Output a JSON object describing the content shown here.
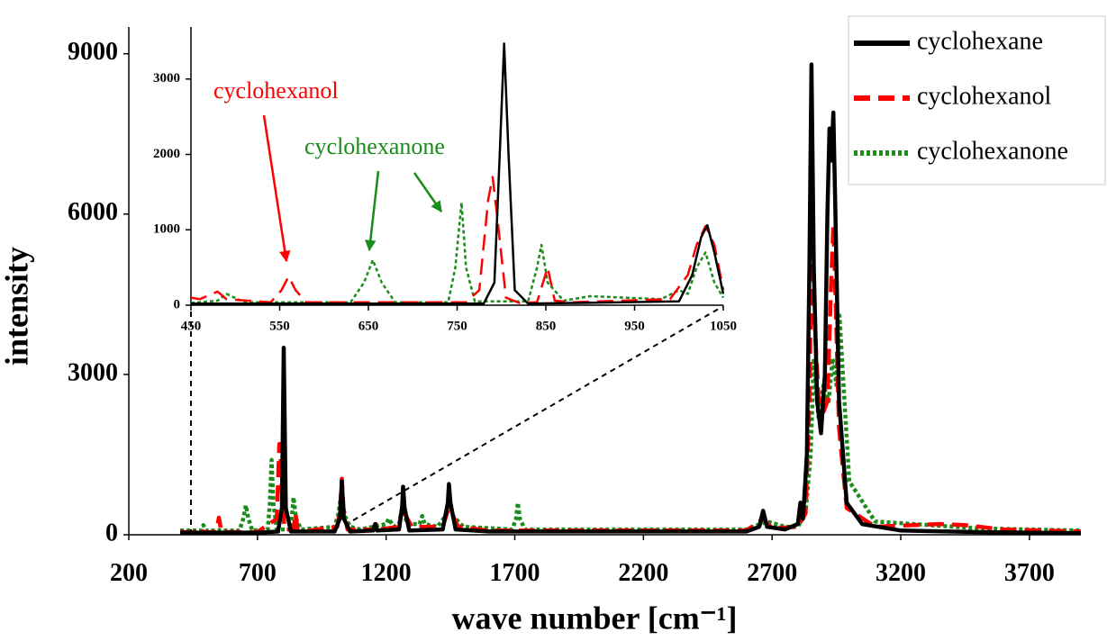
{
  "chart_data": [
    {
      "type": "line",
      "xlabel": "wave number [cm⁻¹]",
      "ylabel": "intensity",
      "xlim": [
        200,
        3900
      ],
      "ylim": [
        0,
        9500
      ],
      "xticks": [
        200,
        700,
        1200,
        1700,
        2200,
        2700,
        3200,
        3700
      ],
      "yticks": [
        0,
        3000,
        6000,
        9000
      ],
      "legend": "upper right",
      "series": [
        {
          "name": "cyclohexane",
          "color": "#000000",
          "dash": "solid",
          "x": [
            400,
            700,
            780,
            795,
            802,
            810,
            830,
            1000,
            1020,
            1028,
            1036,
            1060,
            1150,
            1157,
            1165,
            1250,
            1262,
            1266,
            1272,
            1290,
            1420,
            1440,
            1444,
            1450,
            1470,
            1600,
            2600,
            2650,
            2665,
            2680,
            2750,
            2800,
            2810,
            2820,
            2835,
            2845,
            2853,
            2862,
            2875,
            2890,
            2905,
            2915,
            2923,
            2930,
            2938,
            2946,
            2960,
            2990,
            3050,
            3200,
            3500,
            3900
          ],
          "values": [
            40,
            40,
            60,
            500,
            3500,
            500,
            60,
            60,
            300,
            1000,
            300,
            60,
            80,
            200,
            80,
            100,
            500,
            900,
            500,
            80,
            100,
            600,
            950,
            600,
            100,
            60,
            60,
            150,
            450,
            150,
            100,
            200,
            600,
            300,
            1500,
            5000,
            8800,
            5000,
            2500,
            1900,
            3000,
            6000,
            7600,
            7000,
            7900,
            6000,
            2500,
            600,
            200,
            80,
            50,
            30
          ]
        },
        {
          "name": "cyclohexanol",
          "color": "#ff0000",
          "dash": "dashed",
          "x": [
            400,
            470,
            480,
            490,
            540,
            550,
            560,
            700,
            775,
            785,
            790,
            795,
            805,
            840,
            848,
            856,
            900,
            1010,
            1022,
            1028,
            1034,
            1050,
            1150,
            1160,
            1170,
            1250,
            1262,
            1266,
            1272,
            1300,
            1420,
            1440,
            1444,
            1450,
            1480,
            1600,
            2600,
            2665,
            2700,
            2800,
            2830,
            2845,
            2855,
            2865,
            2880,
            2900,
            2915,
            2930,
            2938,
            2946,
            2960,
            2990,
            3100,
            3250,
            3350,
            3450,
            3600,
            3900
          ],
          "values": [
            50,
            50,
            120,
            50,
            50,
            320,
            50,
            50,
            300,
            1700,
            1500,
            800,
            100,
            100,
            400,
            100,
            80,
            150,
            500,
            1050,
            500,
            100,
            100,
            200,
            100,
            150,
            500,
            800,
            400,
            150,
            150,
            450,
            700,
            450,
            150,
            80,
            80,
            300,
            120,
            150,
            400,
            2500,
            5800,
            4000,
            2600,
            2300,
            2500,
            4800,
            5800,
            4500,
            2000,
            500,
            150,
            180,
            200,
            180,
            100,
            60
          ]
        },
        {
          "name": "cyclohexanone",
          "color": "#1a8c1a",
          "dash": "dotted",
          "x": [
            400,
            480,
            490,
            500,
            630,
            645,
            655,
            665,
            680,
            740,
            748,
            755,
            762,
            775,
            830,
            840,
            850,
            870,
            1000,
            1015,
            1025,
            1035,
            1060,
            1100,
            1200,
            1210,
            1230,
            1250,
            1265,
            1280,
            1330,
            1340,
            1350,
            1400,
            1430,
            1444,
            1460,
            1500,
            1690,
            1705,
            1712,
            1720,
            1740,
            2600,
            2680,
            2750,
            2800,
            2830,
            2850,
            2862,
            2880,
            2900,
            2920,
            2935,
            2950,
            2962,
            2975,
            3000,
            3100,
            3500,
            3900
          ],
          "values": [
            80,
            80,
            180,
            80,
            80,
            300,
            550,
            300,
            80,
            100,
            600,
            1400,
            600,
            100,
            100,
            700,
            300,
            100,
            150,
            400,
            750,
            400,
            150,
            100,
            200,
            300,
            150,
            200,
            600,
            200,
            200,
            350,
            200,
            150,
            350,
            600,
            350,
            150,
            100,
            300,
            600,
            300,
            100,
            100,
            250,
            150,
            150,
            400,
            1500,
            3300,
            2200,
            2800,
            2500,
            3300,
            2800,
            4100,
            3000,
            1000,
            250,
            120,
            80
          ]
        }
      ]
    },
    {
      "type": "line",
      "xlim": [
        450,
        1050
      ],
      "ylim": [
        0,
        3690
      ],
      "xticks": [
        450,
        550,
        650,
        750,
        850,
        950,
        1050
      ],
      "yticks": [
        0,
        1000,
        2000,
        3000
      ],
      "annotations": [
        {
          "text": "cyclohexanol",
          "color": "#ff0000"
        },
        {
          "text": "cyclohexanone",
          "color": "#1a8c1a"
        }
      ],
      "series": [
        {
          "color": "#000000",
          "dash": "solid",
          "x": [
            450,
            600,
            780,
            792,
            798,
            803,
            808,
            815,
            830,
            1000,
            1015,
            1025,
            1032,
            1040,
            1050
          ],
          "values": [
            20,
            20,
            20,
            300,
            2000,
            3470,
            2000,
            200,
            20,
            50,
            400,
            900,
            1060,
            700,
            150
          ]
        },
        {
          "color": "#ff0000",
          "dash": "dashed",
          "x": [
            450,
            460,
            470,
            480,
            490,
            540,
            552,
            560,
            568,
            580,
            760,
            775,
            785,
            790,
            795,
            805,
            820,
            840,
            852,
            860,
            880,
            990,
            1010,
            1020,
            1030,
            1040,
            1050
          ],
          "values": [
            100,
            80,
            130,
            180,
            80,
            40,
            200,
            380,
            200,
            40,
            40,
            200,
            1400,
            1700,
            1200,
            100,
            30,
            40,
            500,
            60,
            40,
            80,
            400,
            800,
            1050,
            800,
            200
          ]
        },
        {
          "color": "#1a8c1a",
          "dash": "dotted",
          "x": [
            450,
            480,
            490,
            510,
            630,
            645,
            655,
            665,
            680,
            740,
            748,
            755,
            760,
            770,
            830,
            840,
            845,
            852,
            870,
            900,
            980,
            1000,
            1010,
            1020,
            1030,
            1040,
            1050
          ],
          "values": [
            30,
            60,
            150,
            40,
            40,
            300,
            600,
            300,
            40,
            40,
            500,
            1360,
            500,
            50,
            50,
            500,
            800,
            300,
            60,
            120,
            80,
            200,
            150,
            500,
            700,
            300,
            100
          ]
        }
      ]
    }
  ]
}
